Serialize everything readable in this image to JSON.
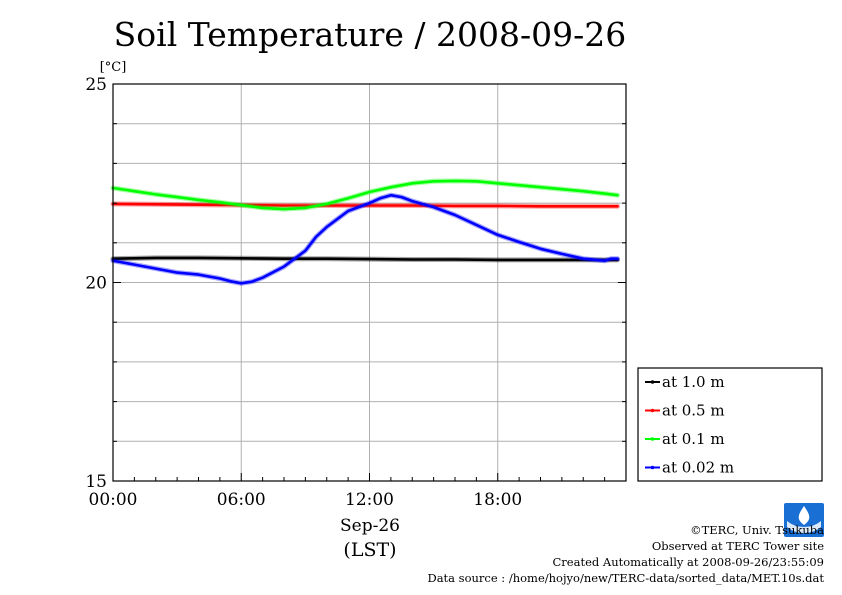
{
  "chart_data": {
    "type": "line",
    "title": "Soil Temperature / 2008-09-26",
    "ylabel": "[°C]",
    "ylim": [
      15,
      25
    ],
    "xlim": [
      0,
      24
    ],
    "yticks": [
      15,
      20,
      25
    ],
    "x_ticks": [
      {
        "value": 0,
        "label": "00:00"
      },
      {
        "value": 6,
        "label": "06:00"
      },
      {
        "value": 12,
        "label": "12:00"
      },
      {
        "value": 18,
        "label": "18:00"
      }
    ],
    "xlabel_date": "Sep-26",
    "xlabel_tz": "(LST)",
    "grid": true,
    "legend_position": "right",
    "series": [
      {
        "name": "at 1.0 m",
        "color": "#000000",
        "x": [
          0,
          2,
          4,
          6,
          8,
          10,
          12,
          14,
          16,
          18,
          20,
          22,
          23.6
        ],
        "y": [
          20.6,
          20.62,
          20.62,
          20.61,
          20.6,
          20.6,
          20.59,
          20.58,
          20.58,
          20.57,
          20.57,
          20.57,
          20.57
        ]
      },
      {
        "name": "at 0.5 m",
        "color": "#ff0000",
        "x": [
          0,
          2,
          4,
          6,
          8,
          10,
          12,
          14,
          16,
          18,
          20,
          22,
          23.6
        ],
        "y": [
          21.98,
          21.97,
          21.96,
          21.95,
          21.94,
          21.94,
          21.94,
          21.94,
          21.93,
          21.93,
          21.92,
          21.92,
          21.92
        ]
      },
      {
        "name": "at 0.1 m",
        "color": "#00ff00",
        "x": [
          0,
          1,
          2,
          3,
          4,
          5,
          6,
          7,
          8,
          9,
          10,
          11,
          12,
          13,
          14,
          15,
          16,
          17,
          18,
          19,
          20,
          21,
          22,
          23,
          23.6
        ],
        "y": [
          22.38,
          22.3,
          22.22,
          22.15,
          22.08,
          22.02,
          21.95,
          21.88,
          21.85,
          21.88,
          21.98,
          22.12,
          22.28,
          22.4,
          22.5,
          22.55,
          22.56,
          22.55,
          22.5,
          22.45,
          22.4,
          22.35,
          22.3,
          22.24,
          22.2
        ]
      },
      {
        "name": "at 0.02 m",
        "color": "#0000ff",
        "x": [
          0,
          1,
          2,
          3,
          4,
          5,
          5.5,
          6,
          6.5,
          7,
          8,
          9,
          9.5,
          10,
          11,
          12,
          12.5,
          13,
          13.5,
          14,
          15,
          16,
          17,
          18,
          19,
          20,
          21,
          22,
          23,
          23.3,
          23.6
        ],
        "y": [
          20.55,
          20.45,
          20.35,
          20.25,
          20.2,
          20.1,
          20.03,
          19.98,
          20.02,
          20.12,
          20.4,
          20.8,
          21.15,
          21.4,
          21.8,
          22.0,
          22.12,
          22.2,
          22.15,
          22.05,
          21.9,
          21.7,
          21.45,
          21.2,
          21.02,
          20.85,
          20.72,
          20.6,
          20.55,
          20.6,
          20.6
        ]
      }
    ]
  },
  "credits": {
    "copyright": "©TERC, Univ. Tsukuba",
    "observed": "Observed at TERC Tower site",
    "created": "Created Automatically at 2008-09-26/23:55:09",
    "source": "Data source : /home/hojyo/new/TERC-data/sorted_data/MET.10s.dat"
  },
  "logo": {
    "text": "TERC",
    "color": "#1a6fd4"
  }
}
